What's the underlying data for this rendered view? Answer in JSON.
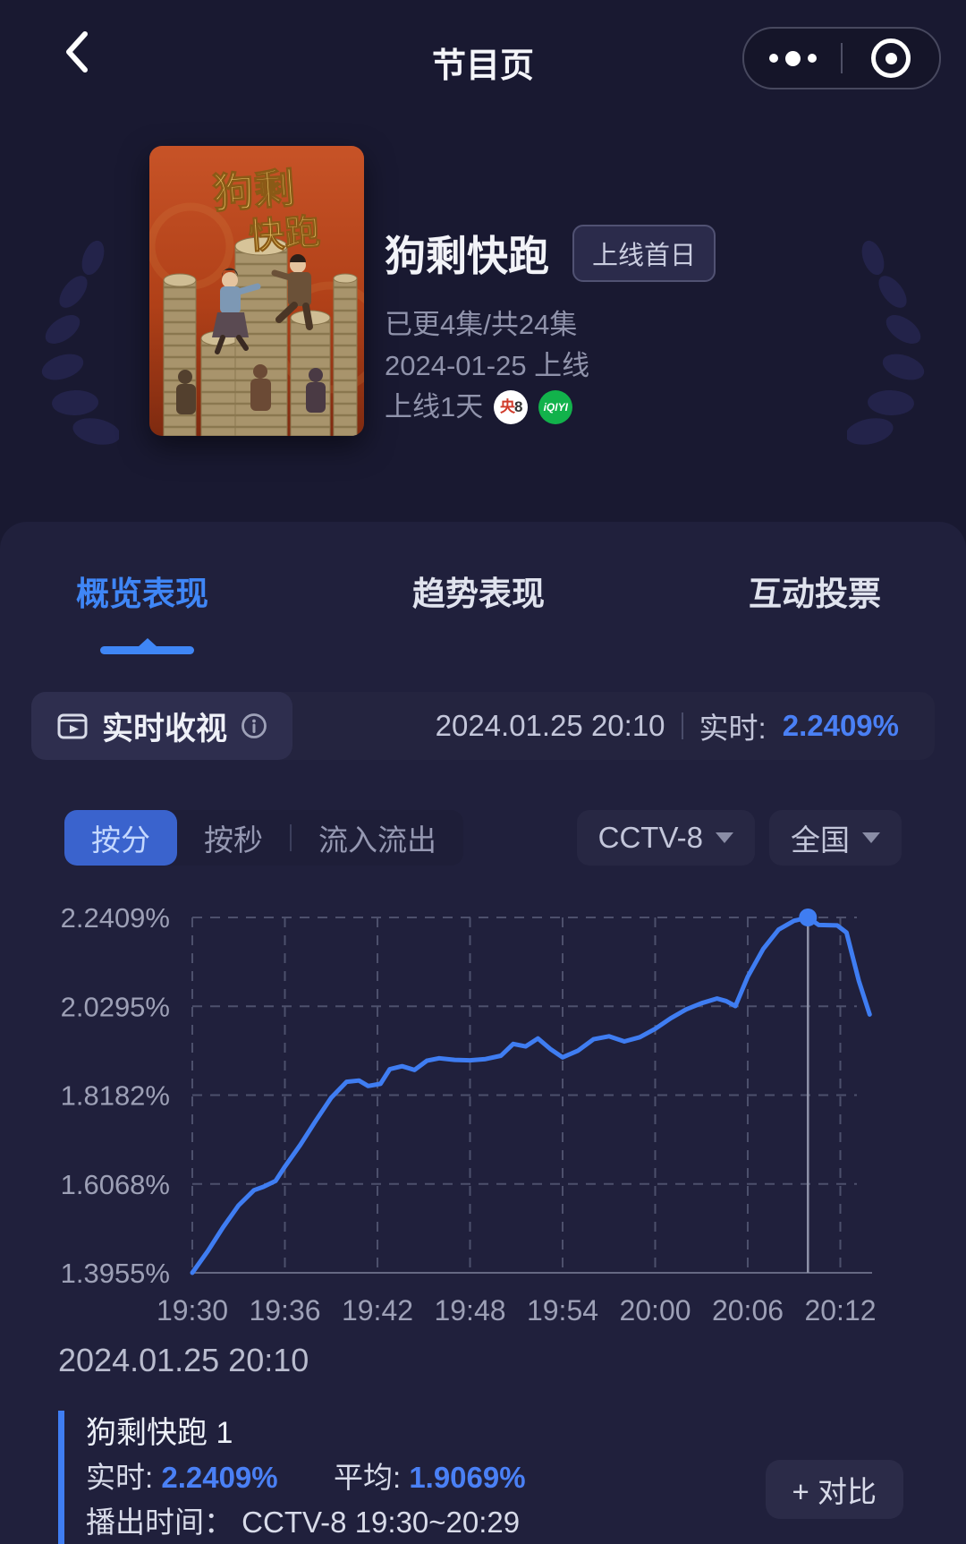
{
  "header": {
    "title": "节目页"
  },
  "icons": {
    "back": "chevron-left",
    "more": "three-dots",
    "exit": "target-circle",
    "section": "video-play",
    "info": "info-circle",
    "dropdown": "triangle-down"
  },
  "hero": {
    "poster_title_line1": "狗剩",
    "poster_title_line2": "快跑",
    "title": "狗剩快跑",
    "badge": "上线首日",
    "episodes": "已更4集/共24集",
    "release": "2024-01-25 上线",
    "online_days": "上线1天",
    "channel_badge_part1": "央",
    "channel_badge_part2": "8",
    "platform_badge": "iQIYI"
  },
  "tabs": [
    {
      "label": "概览表现",
      "active": true
    },
    {
      "label": "趋势表现",
      "active": false
    },
    {
      "label": "互动投票",
      "active": false
    }
  ],
  "realtime_section": {
    "title": "实时收视",
    "datetime": "2024.01.25 20:10",
    "realtime_label": "实时:",
    "realtime_value": "2.2409%"
  },
  "filters": {
    "mode_options": [
      "按分",
      "按秒",
      "流入流出"
    ],
    "selected_mode": "按分",
    "channel": "CCTV-8",
    "region": "全国"
  },
  "chart_data": {
    "type": "line",
    "x_ticks": [
      "19:30",
      "19:36",
      "19:42",
      "19:48",
      "19:54",
      "20:00",
      "20:06",
      "20:12"
    ],
    "x_tick_interval_minutes": 6,
    "y_ticks": [
      {
        "label": "2.2409%",
        "value": 2.2409
      },
      {
        "label": "2.0295%",
        "value": 2.0295
      },
      {
        "label": "1.8182%",
        "value": 1.8182
      },
      {
        "label": "1.6068%",
        "value": 1.6068
      },
      {
        "label": "1.3955%",
        "value": 1.3955
      }
    ],
    "ylim": [
      1.3955,
      2.2409
    ],
    "grid": "dashed",
    "legend_position": "none",
    "series": [
      {
        "name": "狗剩快跑 1",
        "color": "#3f7df2",
        "points": [
          [
            0,
            1.3955
          ],
          [
            1,
            1.447
          ],
          [
            2,
            1.504
          ],
          [
            3,
            1.556
          ],
          [
            4,
            1.592
          ],
          [
            4.6,
            1.6
          ],
          [
            5.4,
            1.614
          ],
          [
            6,
            1.648
          ],
          [
            7,
            1.7
          ],
          [
            8,
            1.757
          ],
          [
            9,
            1.812
          ],
          [
            10,
            1.85
          ],
          [
            10.8,
            1.853
          ],
          [
            11.4,
            1.84
          ],
          [
            12.2,
            1.845
          ],
          [
            12.8,
            1.88
          ],
          [
            13.6,
            1.887
          ],
          [
            14.4,
            1.878
          ],
          [
            15.2,
            1.9
          ],
          [
            16,
            1.906
          ],
          [
            17,
            1.902
          ],
          [
            18,
            1.901
          ],
          [
            19,
            1.904
          ],
          [
            20,
            1.912
          ],
          [
            20.8,
            1.94
          ],
          [
            21.6,
            1.934
          ],
          [
            22.4,
            1.953
          ],
          [
            23.2,
            1.928
          ],
          [
            24,
            1.908
          ],
          [
            25,
            1.924
          ],
          [
            26,
            1.951
          ],
          [
            27,
            1.958
          ],
          [
            28,
            1.946
          ],
          [
            29,
            1.956
          ],
          [
            30,
            1.976
          ],
          [
            31,
            2.001
          ],
          [
            32,
            2.022
          ],
          [
            33,
            2.037
          ],
          [
            34,
            2.048
          ],
          [
            34.6,
            2.042
          ],
          [
            35.2,
            2.03
          ],
          [
            36,
            2.1
          ],
          [
            37,
            2.166
          ],
          [
            38,
            2.212
          ],
          [
            39,
            2.233
          ],
          [
            39.9,
            2.2409
          ],
          [
            40.6,
            2.223
          ],
          [
            41.8,
            2.222
          ],
          [
            42.4,
            2.205
          ],
          [
            43.2,
            2.09
          ],
          [
            43.9,
            2.01
          ]
        ]
      }
    ],
    "cursor": {
      "minute": 39.9,
      "time": "20:10",
      "value": 2.2409
    }
  },
  "footer": {
    "datetime": "2024.01.25 20:10",
    "series_name": "狗剩快跑 1",
    "realtime_label": "实时:",
    "realtime_value": "2.2409%",
    "average_label": "平均:",
    "average_value": "1.9069%",
    "broadcast_label": "播出时间：",
    "broadcast_value": "CCTV-8 19:30~20:29",
    "compare_button": "+ 对比"
  },
  "colors": {
    "accent_blue": "#3f7df2",
    "value_blue": "#4a80f5",
    "selected_segment": "#3a63cd",
    "page_bg": "#191931",
    "card_bg": "#20203c",
    "grid": "#4d506c",
    "axis_text": "#9da0b6",
    "baseline": "#666983",
    "cursor": "#8f92a8",
    "poster_orange": "#b04018",
    "badge_green": "#12b24b",
    "badge_red": "#d03a2a"
  }
}
